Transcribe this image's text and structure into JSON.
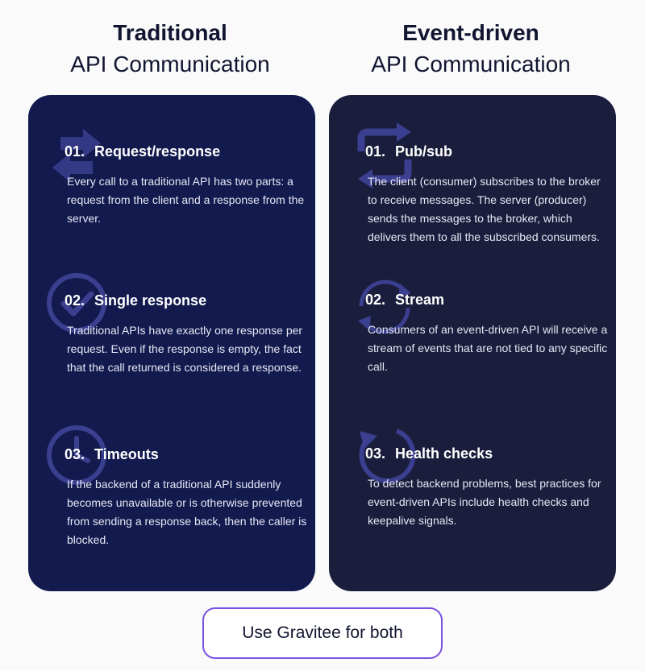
{
  "columns": [
    {
      "heading_bold": "Traditional",
      "heading_regular": "API Communication",
      "sections": [
        {
          "number": "01.",
          "title": "Request/response",
          "body": "Every call to a traditional API has two parts: a request from the client and a response from the server.",
          "icon": "swap-arrows-icon"
        },
        {
          "number": "02.",
          "title": "Single response",
          "body": "Traditional APIs have exactly one response per request. Even if the response is empty, the fact that the call returned is considered a response.",
          "icon": "check-circle-icon"
        },
        {
          "number": "03.",
          "title": "Timeouts",
          "body": "If the backend of a traditional API suddenly becomes unavailable or is otherwise prevented from sending a response back, then the caller is blocked.",
          "icon": "clock-icon"
        }
      ]
    },
    {
      "heading_bold": "Event-driven",
      "heading_regular": "API Communication",
      "sections": [
        {
          "number": "01.",
          "title": "Pub/sub",
          "body": "The client (consumer) subscribes to the broker to receive messages. The server (producer) sends the messages to the broker, which delivers them to all the subscribed consumers.",
          "icon": "refresh-square-icon"
        },
        {
          "number": "02.",
          "title": "Stream",
          "body": "Consumers of an event-driven API will receive a stream of events that are not tied to any specific call.",
          "icon": "cycle-arrows-icon"
        },
        {
          "number": "03.",
          "title": "Health checks",
          "body": "To detect backend problems, best practices for event-driven APIs include health checks and keepalive signals.",
          "icon": "reload-icon"
        }
      ]
    }
  ],
  "cta": {
    "label": "Use Gravitee for both"
  },
  "colors": {
    "background": "#fafafb",
    "left_panel": "#121a4e",
    "right_panel": "#1a1d3c",
    "icon_tint": "#3b3f8f",
    "cta_border": "#7a52e0"
  }
}
